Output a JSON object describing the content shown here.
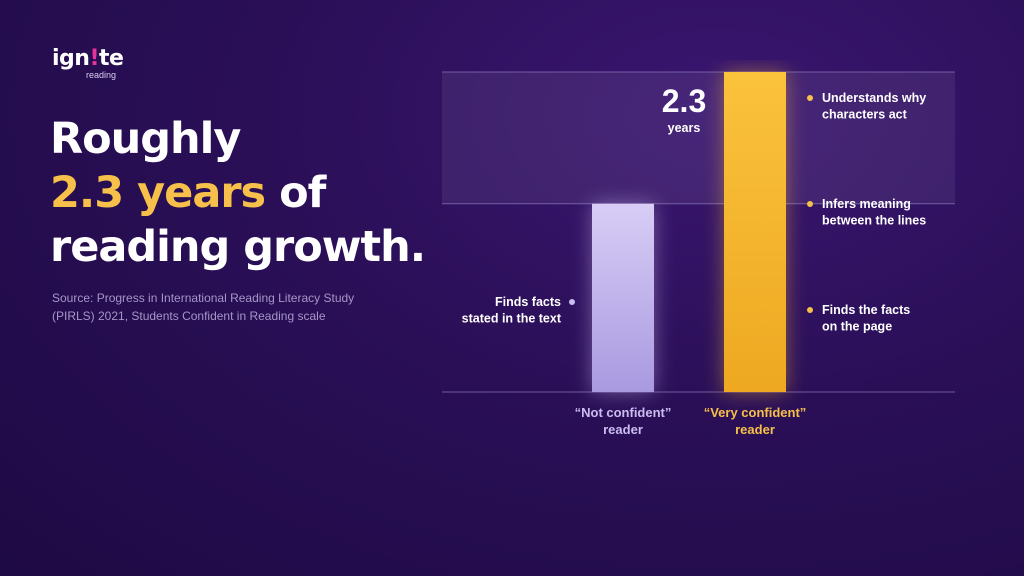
{
  "logo": {
    "word_a": "ign",
    "word_dot": "!",
    "word_b": "te",
    "sub": "reading"
  },
  "headline": {
    "line1": "Roughly",
    "line2_accent": "2.3 years",
    "line2_rest": " of",
    "line3": "reading growth."
  },
  "source": "Source: Progress in International Reading Literacy Study (PIRLS) 2021, Students Confident in Reading scale",
  "colors": {
    "accent": "#f7c04a",
    "bar_not_confident": "#cbbcf0",
    "bar_very_confident": "#f7b731",
    "background": "#2a0f57"
  },
  "chart_data": {
    "type": "bar",
    "categories": [
      "“Not confident” reader",
      "“Very confident” reader"
    ],
    "category_lines": [
      [
        "“Not confident”",
        "reader"
      ],
      [
        "“Very confident”",
        "reader"
      ]
    ],
    "values": [
      1,
      1.7
    ],
    "difference_label": {
      "value": "2.3",
      "unit": "years"
    },
    "levels": [
      {
        "label_lines": [
          "Finds facts",
          "stated in the text"
        ],
        "side": "left",
        "level": 0.5
      },
      {
        "label_lines": [
          "Finds the facts",
          "on the page"
        ],
        "side": "right",
        "level": 0.5
      },
      {
        "label_lines": [
          "Infers meaning",
          "between the lines"
        ],
        "side": "right",
        "level": 1.0
      },
      {
        "label_lines": [
          "Understands why",
          "characters act"
        ],
        "side": "right",
        "level": 1.7
      }
    ],
    "ylim": [
      0,
      1.7
    ]
  }
}
